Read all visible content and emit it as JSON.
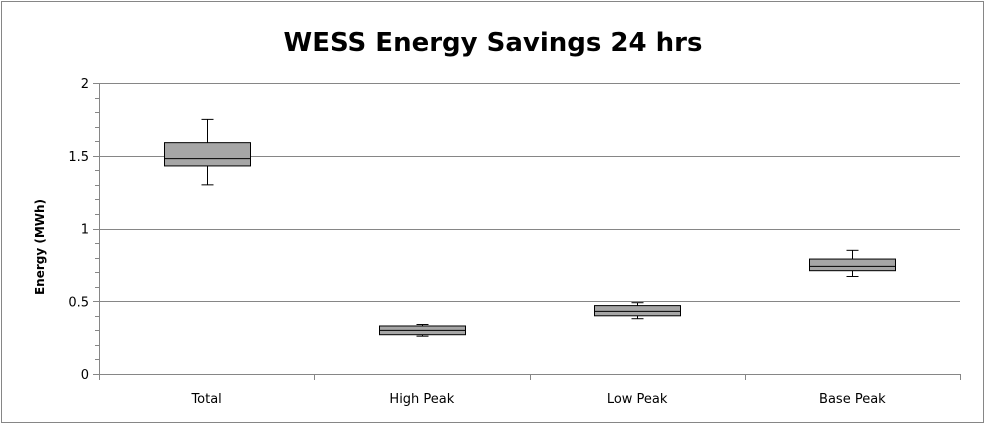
{
  "chart_data": {
    "type": "box",
    "title": "WESS Energy Savings 24 hrs",
    "xlabel": "",
    "ylabel": "Energy (MWh)",
    "ylim": [
      0,
      2
    ],
    "yticks": [
      "0",
      "0.5",
      "1",
      "1.5",
      "2"
    ],
    "ytick_values": [
      0,
      0.5,
      1,
      1.5,
      2
    ],
    "grid": "horizontal",
    "categories": [
      "Total",
      "High Peak",
      "Low Peak",
      "Base Peak"
    ],
    "boxes": [
      {
        "category": "Total",
        "min": 1.3,
        "q1": 1.43,
        "median": 1.48,
        "q3": 1.59,
        "max": 1.75
      },
      {
        "category": "High Peak",
        "min": 0.26,
        "q1": 0.27,
        "median": 0.3,
        "q3": 0.33,
        "max": 0.34
      },
      {
        "category": "Low Peak",
        "min": 0.38,
        "q1": 0.4,
        "median": 0.43,
        "q3": 0.47,
        "max": 0.49
      },
      {
        "category": "Base Peak",
        "min": 0.67,
        "q1": 0.71,
        "median": 0.74,
        "q3": 0.79,
        "max": 0.85
      }
    ],
    "colors": {
      "box_fill": "#a6a6a6",
      "box_stroke": "#000000",
      "grid": "#868686",
      "axis": "#868686",
      "frame": "#868686"
    }
  }
}
